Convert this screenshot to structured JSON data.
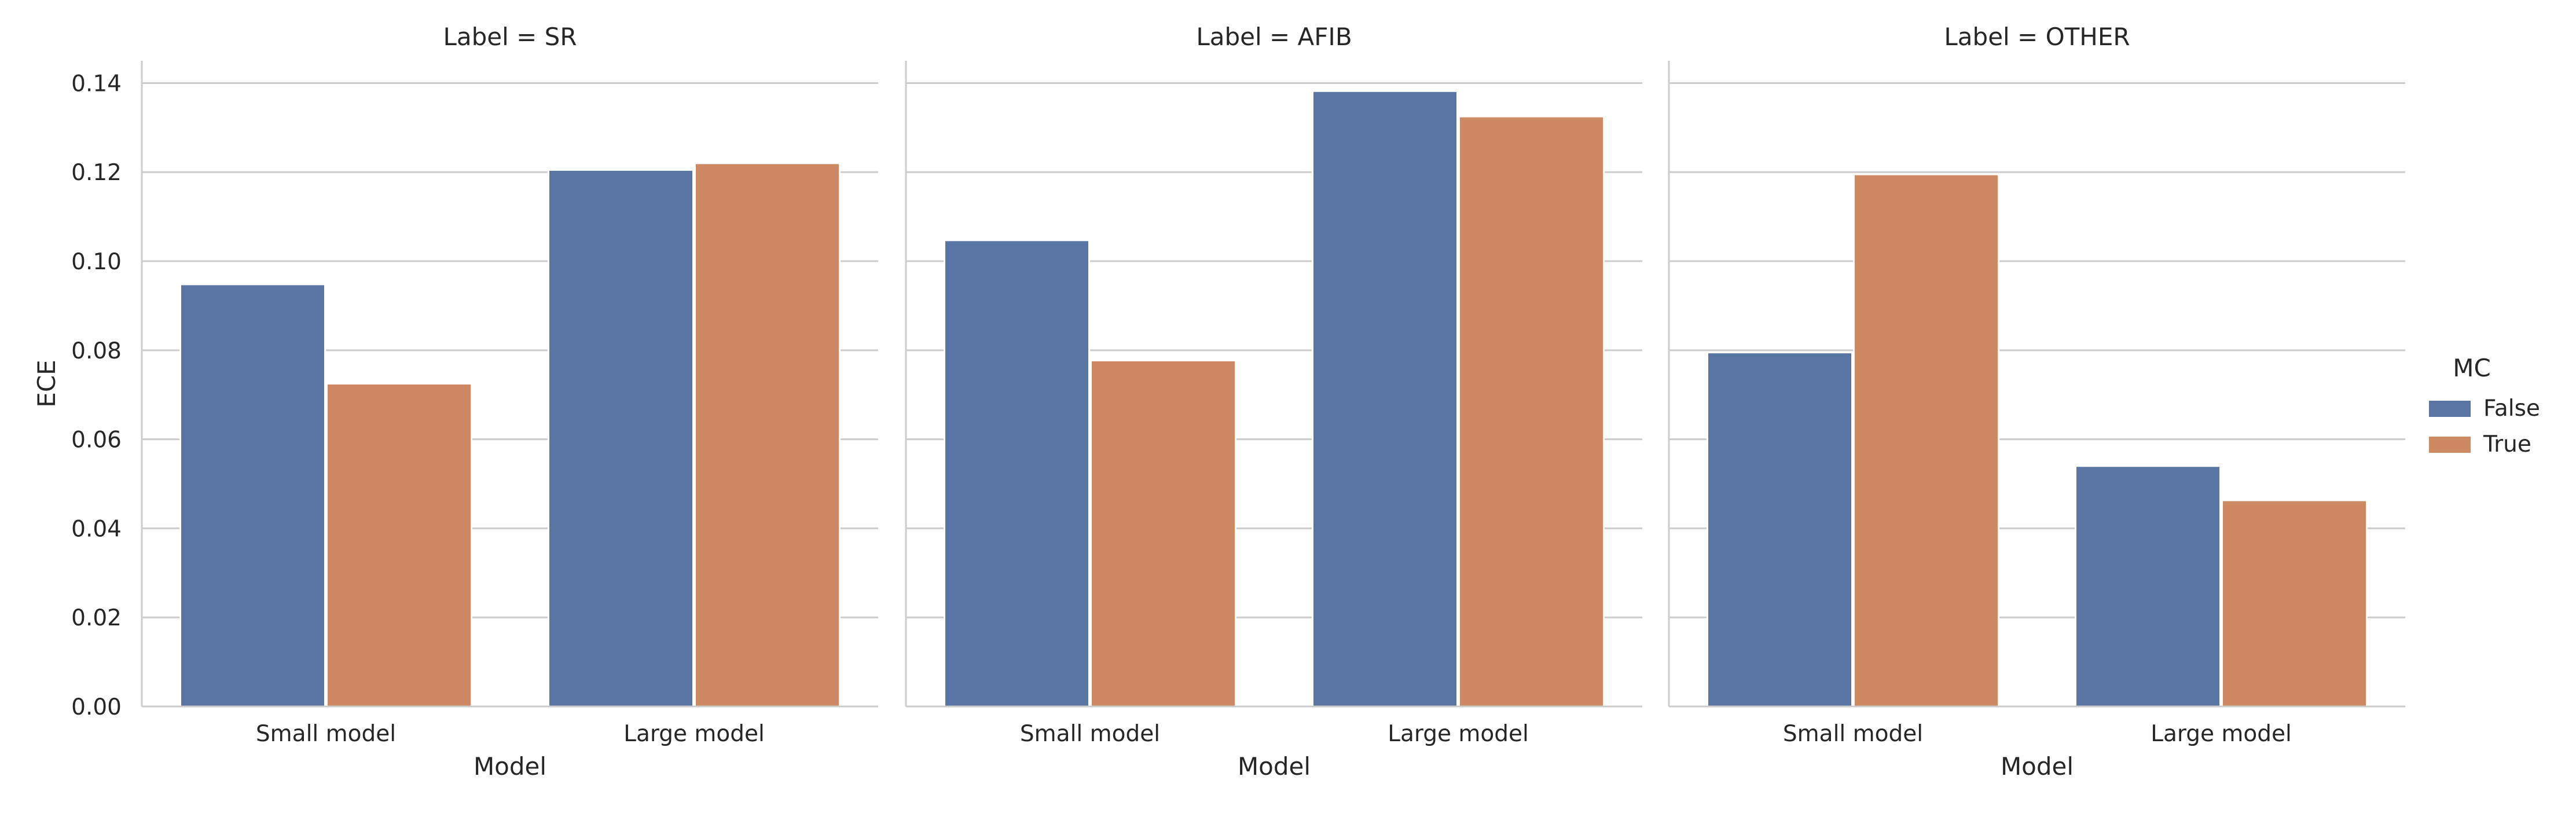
{
  "chart_data": {
    "type": "bar",
    "facet_prefix": "Label = ",
    "facets": [
      {
        "label": "SR",
        "title": "Label = SR",
        "series": [
          {
            "name": "False",
            "values": [
              0.0948,
              0.1205
            ]
          },
          {
            "name": "True",
            "values": [
              0.0725,
              0.122
            ]
          }
        ]
      },
      {
        "label": "AFIB",
        "title": "Label = AFIB",
        "series": [
          {
            "name": "False",
            "values": [
              0.1047,
              0.1382
            ]
          },
          {
            "name": "True",
            "values": [
              0.0777,
              0.1325
            ]
          }
        ]
      },
      {
        "label": "OTHER",
        "title": "Label = OTHER",
        "series": [
          {
            "name": "False",
            "values": [
              0.0795,
              0.054
            ]
          },
          {
            "name": "True",
            "values": [
              0.1195,
              0.0463
            ]
          }
        ]
      }
    ],
    "categories": [
      "Small model",
      "Large model"
    ],
    "xlabel": "Model",
    "ylabel": "ECE",
    "ylim": [
      0,
      0.145
    ],
    "yticks": [
      "0.00",
      "0.02",
      "0.04",
      "0.06",
      "0.08",
      "0.10",
      "0.12",
      "0.14"
    ],
    "legend": {
      "title": "MC",
      "entries": [
        "False",
        "True"
      ],
      "placement": "right"
    },
    "colors": {
      "False": "#5875a4",
      "True": "#cc8963"
    },
    "grid": true
  }
}
